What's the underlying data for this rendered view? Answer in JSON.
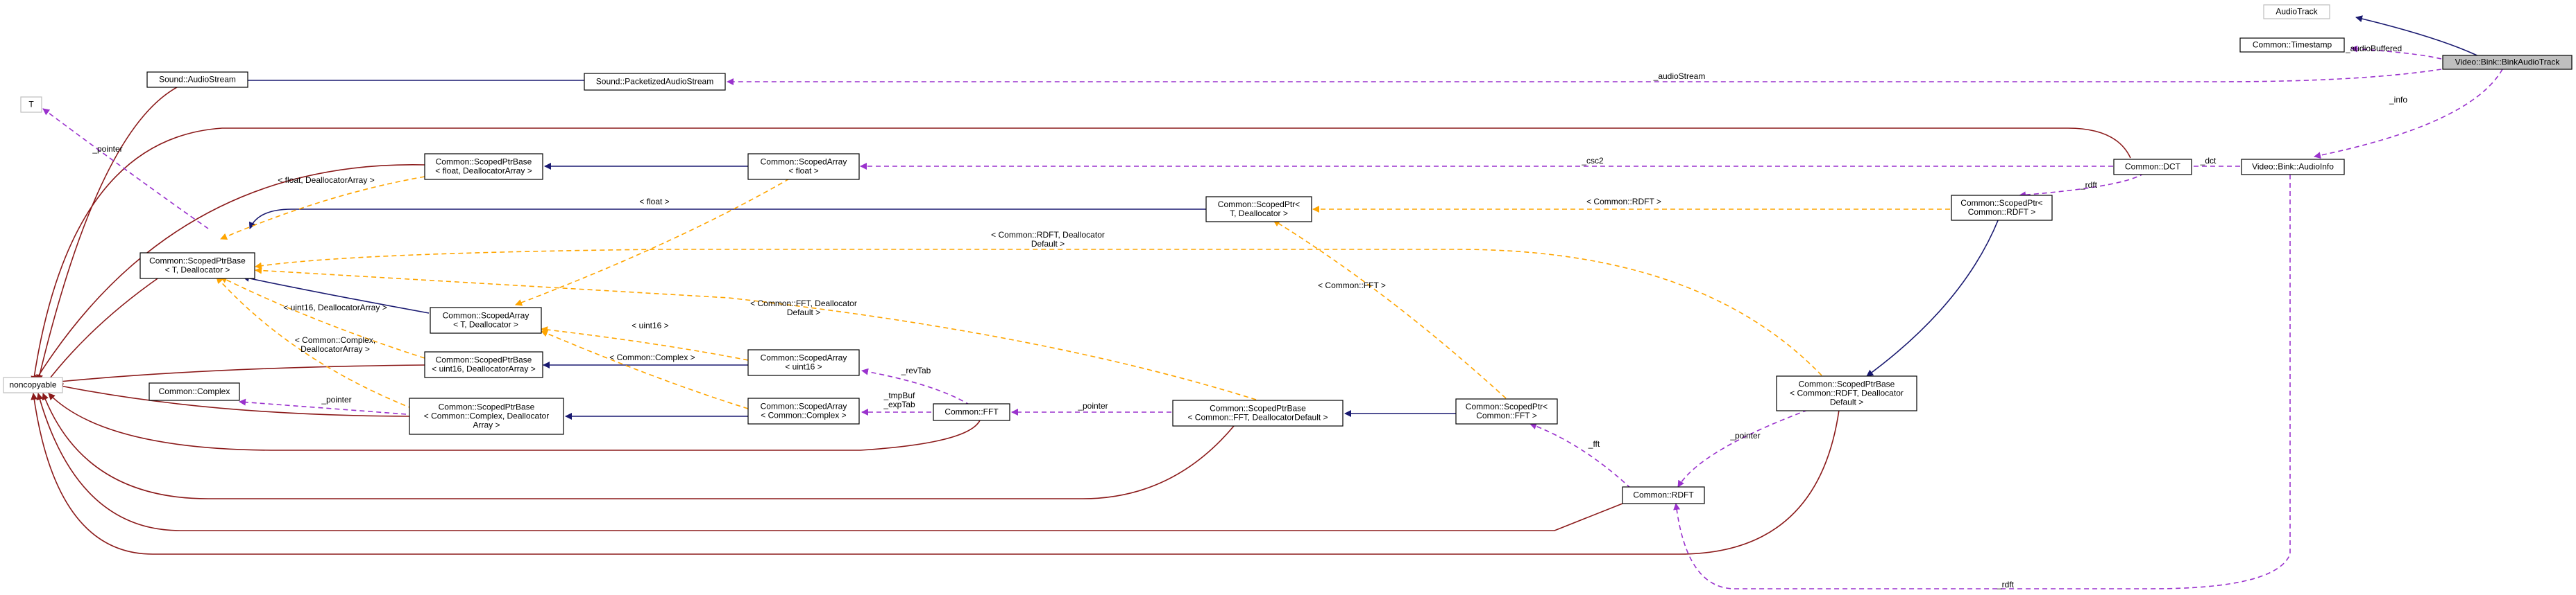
{
  "colors": {
    "inheritance": "#191970",
    "usage": "#9a32cd",
    "template": "#ffa500",
    "private": "#8b1a1a"
  },
  "nodes": [
    {
      "id": "n_audiotrack",
      "lines": [
        "AudioTrack"
      ],
      "style": "grey"
    },
    {
      "id": "n_timestamp",
      "lines": [
        "Common::Timestamp"
      ],
      "style": "normal"
    },
    {
      "id": "n_binkaudiotrack",
      "lines": [
        "Video::Bink::BinkAudioTrack"
      ],
      "style": "highlight"
    },
    {
      "id": "n_audioinfo",
      "lines": [
        "Video::Bink::AudioInfo"
      ],
      "style": "normal"
    },
    {
      "id": "n_dct",
      "lines": [
        "Common::DCT"
      ],
      "style": "normal"
    },
    {
      "id": "n_scopedptr_rdft",
      "lines": [
        "Common::ScopedPtr<",
        "Common::RDFT >"
      ],
      "style": "normal"
    },
    {
      "id": "n_scopedptrbase_rdft",
      "lines": [
        "Common::ScopedPtrBase",
        "< Common::RDFT, Deallocator",
        "Default >"
      ],
      "style": "normal"
    },
    {
      "id": "n_rdft",
      "lines": [
        "Common::RDFT"
      ],
      "style": "normal"
    },
    {
      "id": "n_scopedptr_fft",
      "lines": [
        "Common::ScopedPtr<",
        "Common::FFT >"
      ],
      "style": "normal"
    },
    {
      "id": "n_scopedptrbase_fft",
      "lines": [
        "Common::ScopedPtrBase",
        "< Common::FFT, DeallocatorDefault >"
      ],
      "style": "normal"
    },
    {
      "id": "n_fft",
      "lines": [
        "Common::FFT"
      ],
      "style": "normal"
    },
    {
      "id": "n_scopedptr_t",
      "lines": [
        "Common::ScopedPtr<",
        "T, Deallocator >"
      ],
      "style": "normal"
    },
    {
      "id": "n_audiostream",
      "lines": [
        "Sound::AudioStream"
      ],
      "style": "normal"
    },
    {
      "id": "n_packetized",
      "lines": [
        "Sound::PacketizedAudioStream"
      ],
      "style": "normal"
    },
    {
      "id": "n_t",
      "lines": [
        "T"
      ],
      "style": "grey"
    },
    {
      "id": "n_scopedptrbase_float",
      "lines": [
        "Common::ScopedPtrBase",
        "< float, DeallocatorArray >"
      ],
      "style": "normal"
    },
    {
      "id": "n_scopedarray_float",
      "lines": [
        "Common::ScopedArray",
        "< float >"
      ],
      "style": "normal"
    },
    {
      "id": "n_scopedptrbase_t",
      "lines": [
        "Common::ScopedPtrBase",
        "< T, Deallocator >"
      ],
      "style": "normal"
    },
    {
      "id": "n_scopedarray_t",
      "lines": [
        "Common::ScopedArray",
        "< T, Deallocator >"
      ],
      "style": "normal"
    },
    {
      "id": "n_scopedptrbase_uint16",
      "lines": [
        "Common::ScopedPtrBase",
        "< uint16, DeallocatorArray >"
      ],
      "style": "normal"
    },
    {
      "id": "n_scopedarray_uint16",
      "lines": [
        "Common::ScopedArray",
        "< uint16 >"
      ],
      "style": "normal"
    },
    {
      "id": "n_complex",
      "lines": [
        "Common::Complex"
      ],
      "style": "normal"
    },
    {
      "id": "n_scopedptrbase_complex",
      "lines": [
        "Common::ScopedPtrBase",
        "< Common::Complex, Deallocator",
        "Array >"
      ],
      "style": "normal"
    },
    {
      "id": "n_scopedarray_complex",
      "lines": [
        "Common::ScopedArray",
        "< Common::Complex >"
      ],
      "style": "normal"
    },
    {
      "id": "n_noncopyable",
      "lines": [
        "noncopyable"
      ],
      "style": "grey"
    }
  ],
  "edge_labels": [
    {
      "id": "l_audiobuffered",
      "lines": [
        "_audioBuffered"
      ]
    },
    {
      "id": "l_info",
      "lines": [
        "_info"
      ]
    },
    {
      "id": "l_audiostream",
      "lines": [
        "_audioStream"
      ]
    },
    {
      "id": "l_dct",
      "lines": [
        "_dct"
      ]
    },
    {
      "id": "l_csc2",
      "lines": [
        "_csc2"
      ]
    },
    {
      "id": "l_rdft_member",
      "lines": [
        "_rdft"
      ]
    },
    {
      "id": "l_rdft_bottom",
      "lines": [
        "_rdft"
      ]
    },
    {
      "id": "l_pointer_rdft",
      "lines": [
        "_pointer"
      ]
    },
    {
      "id": "l_fft",
      "lines": [
        "_fft"
      ]
    },
    {
      "id": "l_pointer_fft",
      "lines": [
        "_pointer"
      ]
    },
    {
      "id": "l_revtab",
      "lines": [
        "_revTab"
      ]
    },
    {
      "id": "l_tmpbuf",
      "lines": [
        "_tmpBuf",
        "_expTab"
      ]
    },
    {
      "id": "l_pointer_complex",
      "lines": [
        "_pointer"
      ]
    },
    {
      "id": "l_pointer_t",
      "lines": [
        "_pointer"
      ]
    },
    {
      "id": "l_tpl_rdft",
      "lines": [
        "< Common::RDFT >"
      ]
    },
    {
      "id": "l_tpl_fft",
      "lines": [
        "< Common::FFT >"
      ]
    },
    {
      "id": "l_tpl_float",
      "lines": [
        "< float >"
      ]
    },
    {
      "id": "l_tpl_float_da",
      "lines": [
        "< float, DeallocatorArray >"
      ]
    },
    {
      "id": "l_tpl_rdft_da",
      "lines": [
        "< Common::RDFT, Deallocator",
        "Default >"
      ]
    },
    {
      "id": "l_tpl_fft_da",
      "lines": [
        "< Common::FFT, Deallocator",
        "Default >"
      ]
    },
    {
      "id": "l_tpl_uint16_da",
      "lines": [
        "< uint16, DeallocatorArray >"
      ]
    },
    {
      "id": "l_tpl_uint16",
      "lines": [
        "< uint16 >"
      ]
    },
    {
      "id": "l_tpl_complex",
      "lines": [
        "< Common::Complex >"
      ]
    },
    {
      "id": "l_tpl_complex_da",
      "lines": [
        "< Common::Complex,",
        "DeallocatorArray >"
      ]
    }
  ]
}
